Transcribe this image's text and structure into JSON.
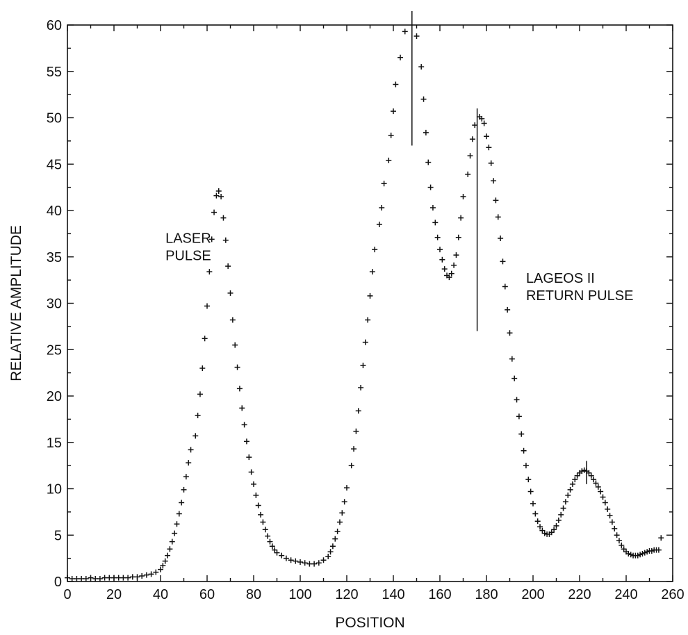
{
  "chart_data": {
    "type": "scatter",
    "xlabel": "POSITION",
    "ylabel": "RELATIVE AMPLITUDE",
    "xlim": [
      0,
      260
    ],
    "ylim": [
      0,
      60
    ],
    "x_ticks": [
      0,
      20,
      40,
      60,
      80,
      100,
      120,
      140,
      160,
      180,
      200,
      220,
      240,
      260
    ],
    "y_ticks": [
      0,
      5,
      10,
      15,
      20,
      25,
      30,
      35,
      40,
      45,
      50,
      55,
      60
    ],
    "marker": "plus",
    "grid": false,
    "annotations": [
      {
        "lines": [
          "LASER",
          "PULSE"
        ],
        "x": 66,
        "y": 36.5
      },
      {
        "lines": [
          "LAGEOS II",
          "RETURN PULSE"
        ],
        "x": 197,
        "y": 32.2
      }
    ],
    "vertical_lines": [
      {
        "x": 148,
        "y_from": 47,
        "y_to": 62
      },
      {
        "x": 176,
        "y_from": 27,
        "y_to": 51
      },
      {
        "x": 223,
        "y_from": 10.5,
        "y_to": 13
      }
    ],
    "points": [
      [
        0,
        0.4
      ],
      [
        2,
        0.3
      ],
      [
        4,
        0.3
      ],
      [
        6,
        0.3
      ],
      [
        8,
        0.3
      ],
      [
        10,
        0.4
      ],
      [
        12,
        0.3
      ],
      [
        14,
        0.3
      ],
      [
        16,
        0.4
      ],
      [
        18,
        0.4
      ],
      [
        20,
        0.4
      ],
      [
        22,
        0.4
      ],
      [
        24,
        0.4
      ],
      [
        26,
        0.4
      ],
      [
        28,
        0.5
      ],
      [
        30,
        0.5
      ],
      [
        32,
        0.6
      ],
      [
        34,
        0.7
      ],
      [
        36,
        0.8
      ],
      [
        38,
        1.0
      ],
      [
        40,
        1.3
      ],
      [
        41,
        1.7
      ],
      [
        42,
        2.2
      ],
      [
        43,
        2.8
      ],
      [
        44,
        3.5
      ],
      [
        45,
        4.3
      ],
      [
        46,
        5.2
      ],
      [
        47,
        6.2
      ],
      [
        48,
        7.3
      ],
      [
        49,
        8.5
      ],
      [
        50,
        9.9
      ],
      [
        51,
        11.3
      ],
      [
        52,
        12.8
      ],
      [
        53,
        14.2
      ],
      [
        55,
        15.7
      ],
      [
        56,
        17.9
      ],
      [
        57,
        20.2
      ],
      [
        58,
        23.0
      ],
      [
        59,
        26.2
      ],
      [
        60,
        29.7
      ],
      [
        61,
        33.4
      ],
      [
        62,
        36.9
      ],
      [
        63,
        39.8
      ],
      [
        64,
        41.6
      ],
      [
        65,
        42.1
      ],
      [
        66,
        41.5
      ],
      [
        67,
        39.2
      ],
      [
        68,
        36.8
      ],
      [
        69,
        34.0
      ],
      [
        70,
        31.1
      ],
      [
        71,
        28.2
      ],
      [
        72,
        25.5
      ],
      [
        73,
        23.1
      ],
      [
        74,
        20.8
      ],
      [
        75,
        18.7
      ],
      [
        76,
        16.9
      ],
      [
        77,
        15.1
      ],
      [
        78,
        13.4
      ],
      [
        79,
        11.8
      ],
      [
        80,
        10.5
      ],
      [
        81,
        9.3
      ],
      [
        82,
        8.2
      ],
      [
        83,
        7.2
      ],
      [
        84,
        6.4
      ],
      [
        85,
        5.6
      ],
      [
        86,
        4.9
      ],
      [
        87,
        4.3
      ],
      [
        88,
        3.8
      ],
      [
        89,
        3.4
      ],
      [
        90,
        3.1
      ],
      [
        92,
        2.8
      ],
      [
        94,
        2.5
      ],
      [
        96,
        2.3
      ],
      [
        98,
        2.2
      ],
      [
        100,
        2.1
      ],
      [
        102,
        2.0
      ],
      [
        104,
        1.9
      ],
      [
        106,
        1.9
      ],
      [
        108,
        2.0
      ],
      [
        110,
        2.3
      ],
      [
        112,
        2.7
      ],
      [
        113,
        3.2
      ],
      [
        114,
        3.8
      ],
      [
        115,
        4.6
      ],
      [
        116,
        5.4
      ],
      [
        117,
        6.4
      ],
      [
        118,
        7.4
      ],
      [
        119,
        8.6
      ],
      [
        120,
        10.1
      ],
      [
        122,
        12.5
      ],
      [
        123,
        14.3
      ],
      [
        124,
        16.2
      ],
      [
        125,
        18.4
      ],
      [
        126,
        20.9
      ],
      [
        127,
        23.3
      ],
      [
        128,
        25.8
      ],
      [
        129,
        28.2
      ],
      [
        130,
        30.8
      ],
      [
        131,
        33.4
      ],
      [
        132,
        35.8
      ],
      [
        134,
        38.5
      ],
      [
        135,
        40.3
      ],
      [
        136,
        42.9
      ],
      [
        138,
        45.4
      ],
      [
        139,
        48.1
      ],
      [
        140,
        50.7
      ],
      [
        141,
        53.6
      ],
      [
        143,
        56.5
      ],
      [
        145,
        59.3
      ],
      [
        150,
        58.8
      ],
      [
        152,
        55.5
      ],
      [
        153,
        52.0
      ],
      [
        154,
        48.4
      ],
      [
        155,
        45.2
      ],
      [
        156,
        42.5
      ],
      [
        157,
        40.3
      ],
      [
        158,
        38.7
      ],
      [
        159,
        37.1
      ],
      [
        160,
        35.8
      ],
      [
        161,
        34.7
      ],
      [
        162,
        33.7
      ],
      [
        163,
        33.0
      ],
      [
        164,
        32.8
      ],
      [
        165,
        33.2
      ],
      [
        166,
        34.1
      ],
      [
        167,
        35.2
      ],
      [
        168,
        37.1
      ],
      [
        169,
        39.2
      ],
      [
        170,
        41.5
      ],
      [
        172,
        43.9
      ],
      [
        173,
        45.9
      ],
      [
        174,
        47.7
      ],
      [
        175,
        49.2
      ],
      [
        177,
        50.1
      ],
      [
        178,
        49.9
      ],
      [
        179,
        49.4
      ],
      [
        180,
        48.0
      ],
      [
        181,
        46.8
      ],
      [
        182,
        45.1
      ],
      [
        183,
        43.2
      ],
      [
        184,
        41.1
      ],
      [
        185,
        39.3
      ],
      [
        186,
        37.0
      ],
      [
        187,
        34.5
      ],
      [
        188,
        31.8
      ],
      [
        189,
        29.3
      ],
      [
        190,
        26.8
      ],
      [
        191,
        24.0
      ],
      [
        192,
        21.9
      ],
      [
        193,
        19.6
      ],
      [
        194,
        17.8
      ],
      [
        195,
        15.9
      ],
      [
        196,
        14.1
      ],
      [
        197,
        12.5
      ],
      [
        198,
        11.0
      ],
      [
        199,
        9.7
      ],
      [
        200,
        8.4
      ],
      [
        201,
        7.3
      ],
      [
        202,
        6.5
      ],
      [
        203,
        5.9
      ],
      [
        204,
        5.5
      ],
      [
        205,
        5.2
      ],
      [
        206,
        5.1
      ],
      [
        207,
        5.1
      ],
      [
        208,
        5.3
      ],
      [
        209,
        5.6
      ],
      [
        210,
        6.0
      ],
      [
        211,
        6.6
      ],
      [
        212,
        7.2
      ],
      [
        213,
        7.9
      ],
      [
        214,
        8.6
      ],
      [
        215,
        9.3
      ],
      [
        216,
        9.9
      ],
      [
        217,
        10.5
      ],
      [
        218,
        11.0
      ],
      [
        219,
        11.4
      ],
      [
        220,
        11.7
      ],
      [
        221,
        11.9
      ],
      [
        222,
        12.0
      ],
      [
        223,
        11.9
      ],
      [
        224,
        11.7
      ],
      [
        225,
        11.4
      ],
      [
        226,
        11.0
      ],
      [
        227,
        10.6
      ],
      [
        228,
        10.2
      ],
      [
        229,
        9.7
      ],
      [
        230,
        9.1
      ],
      [
        231,
        8.5
      ],
      [
        232,
        7.8
      ],
      [
        233,
        7.1
      ],
      [
        234,
        6.4
      ],
      [
        235,
        5.7
      ],
      [
        236,
        5.0
      ],
      [
        237,
        4.4
      ],
      [
        238,
        3.9
      ],
      [
        239,
        3.5
      ],
      [
        240,
        3.2
      ],
      [
        241,
        3.0
      ],
      [
        242,
        2.9
      ],
      [
        243,
        2.8
      ],
      [
        244,
        2.8
      ],
      [
        245,
        2.8
      ],
      [
        246,
        2.9
      ],
      [
        247,
        3.0
      ],
      [
        248,
        3.1
      ],
      [
        249,
        3.2
      ],
      [
        250,
        3.3
      ],
      [
        251,
        3.3
      ],
      [
        252,
        3.4
      ],
      [
        253,
        3.4
      ],
      [
        254,
        3.4
      ],
      [
        255,
        4.7
      ]
    ]
  }
}
